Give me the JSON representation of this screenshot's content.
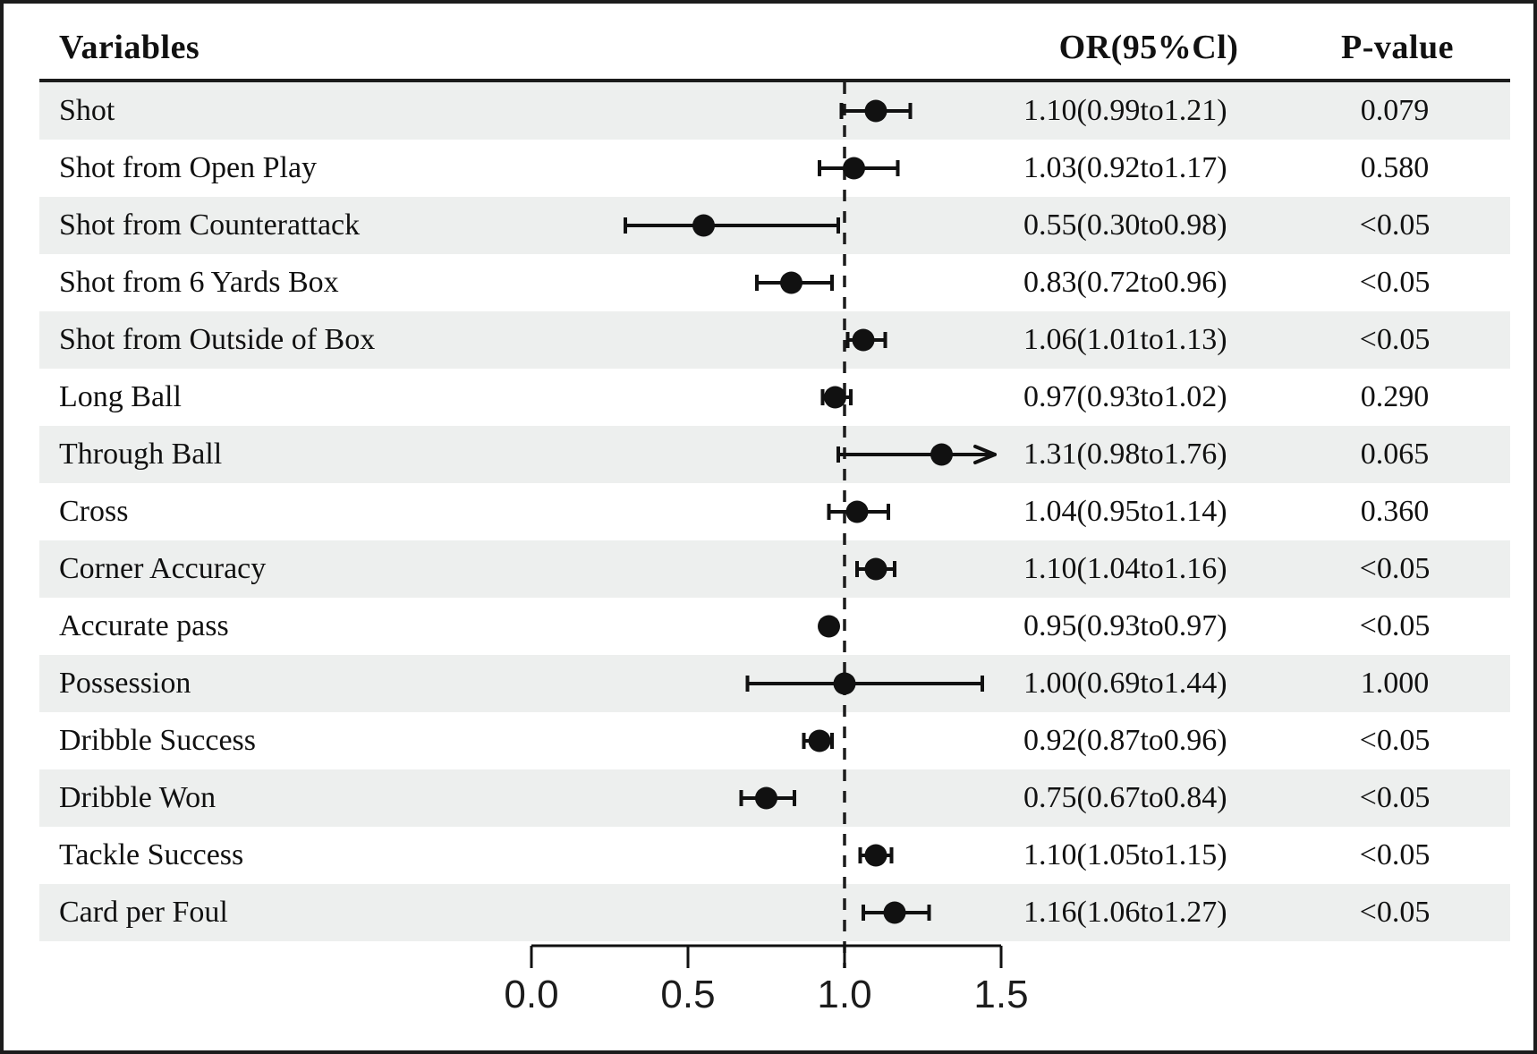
{
  "figure": {
    "header": {
      "variables_label": "Variables",
      "or_label": "OR(95%Cl)",
      "p_label": "P-value"
    }
  },
  "chart_data": {
    "type": "forest",
    "title": "",
    "columns": [
      "Variables",
      "OR(95%Cl)",
      "P-value"
    ],
    "x_axis": {
      "tick_labels": [
        "0.0",
        "0.5",
        "1.0",
        "1.5"
      ],
      "tick_values": [
        0.0,
        0.5,
        1.0,
        1.5
      ],
      "range": [
        0.0,
        1.5
      ],
      "reference_line": 1.0,
      "grid": false
    },
    "rows": [
      {
        "variable": "Shot",
        "or": 1.1,
        "ci_low": 0.99,
        "ci_high": 1.21,
        "or_ci_text": "1.10(0.99to1.21)",
        "p_value": "0.079",
        "ci_clipped_right": false
      },
      {
        "variable": "Shot from Open Play",
        "or": 1.03,
        "ci_low": 0.92,
        "ci_high": 1.17,
        "or_ci_text": "1.03(0.92to1.17)",
        "p_value": "0.580",
        "ci_clipped_right": false
      },
      {
        "variable": "Shot from Counterattack",
        "or": 0.55,
        "ci_low": 0.3,
        "ci_high": 0.98,
        "or_ci_text": "0.55(0.30to0.98)",
        "p_value": "<0.05",
        "ci_clipped_right": false
      },
      {
        "variable": "Shot from 6 Yards Box",
        "or": 0.83,
        "ci_low": 0.72,
        "ci_high": 0.96,
        "or_ci_text": "0.83(0.72to0.96)",
        "p_value": "<0.05",
        "ci_clipped_right": false
      },
      {
        "variable": "Shot from Outside of Box",
        "or": 1.06,
        "ci_low": 1.01,
        "ci_high": 1.13,
        "or_ci_text": "1.06(1.01to1.13)",
        "p_value": "<0.05",
        "ci_clipped_right": false
      },
      {
        "variable": "Long Ball",
        "or": 0.97,
        "ci_low": 0.93,
        "ci_high": 1.02,
        "or_ci_text": "0.97(0.93to1.02)",
        "p_value": "0.290",
        "ci_clipped_right": false
      },
      {
        "variable": "Through Ball",
        "or": 1.31,
        "ci_low": 0.98,
        "ci_high": 1.76,
        "or_ci_text": "1.31(0.98to1.76)",
        "p_value": "0.065",
        "ci_clipped_right": true
      },
      {
        "variable": "Cross",
        "or": 1.04,
        "ci_low": 0.95,
        "ci_high": 1.14,
        "or_ci_text": "1.04(0.95to1.14)",
        "p_value": "0.360",
        "ci_clipped_right": false
      },
      {
        "variable": "Corner Accuracy",
        "or": 1.1,
        "ci_low": 1.04,
        "ci_high": 1.16,
        "or_ci_text": "1.10(1.04to1.16)",
        "p_value": "<0.05",
        "ci_clipped_right": false
      },
      {
        "variable": "Accurate pass",
        "or": 0.95,
        "ci_low": 0.93,
        "ci_high": 0.97,
        "or_ci_text": "0.95(0.93to0.97)",
        "p_value": "<0.05",
        "ci_clipped_right": false
      },
      {
        "variable": "Possession",
        "or": 1.0,
        "ci_low": 0.69,
        "ci_high": 1.44,
        "or_ci_text": "1.00(0.69to1.44)",
        "p_value": "1.000",
        "ci_clipped_right": false
      },
      {
        "variable": "Dribble Success",
        "or": 0.92,
        "ci_low": 0.87,
        "ci_high": 0.96,
        "or_ci_text": "0.92(0.87to0.96)",
        "p_value": "<0.05",
        "ci_clipped_right": false
      },
      {
        "variable": "Dribble Won",
        "or": 0.75,
        "ci_low": 0.67,
        "ci_high": 0.84,
        "or_ci_text": "0.75(0.67to0.84)",
        "p_value": "<0.05",
        "ci_clipped_right": false
      },
      {
        "variable": "Tackle Success",
        "or": 1.1,
        "ci_low": 1.05,
        "ci_high": 1.15,
        "or_ci_text": "1.10(1.05to1.15)",
        "p_value": "<0.05",
        "ci_clipped_right": false
      },
      {
        "variable": "Card per Foul",
        "or": 1.16,
        "ci_low": 1.06,
        "ci_high": 1.27,
        "or_ci_text": "1.16(1.06to1.27)",
        "p_value": "<0.05",
        "ci_clipped_right": false
      }
    ],
    "colors": {
      "marker": "#111111",
      "row_band": "#edefee",
      "text": "#111111",
      "reference_line": "#1c1c1c"
    },
    "legend": null
  }
}
